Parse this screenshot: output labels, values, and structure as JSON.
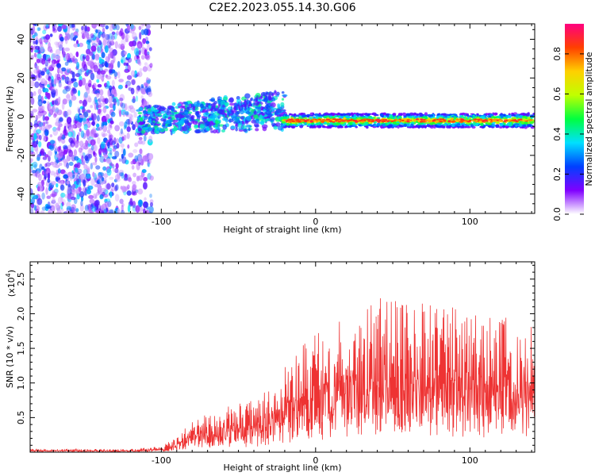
{
  "title": "C2E2.2023.055.14.30.G06",
  "chart_data": [
    {
      "type": "heatmap",
      "name": "spectrogram",
      "xlabel": "Height of straight line (km)",
      "ylabel": "Frequency (Hz)",
      "xlim": [
        -185,
        142
      ],
      "ylim": [
        -50,
        48
      ],
      "xticks": [
        -100,
        0,
        100
      ],
      "xtick_labels": [
        "-100",
        "0",
        "100"
      ],
      "yticks": [
        -40,
        -20,
        0,
        20,
        40
      ],
      "ytick_labels": [
        "-40",
        "-20",
        "0",
        "20",
        "40"
      ],
      "colorbar": {
        "label": "Normalized spectral amplitude",
        "range": [
          0,
          0.95
        ],
        "ticks": [
          0.0,
          0.2,
          0.4,
          0.6,
          0.8
        ],
        "tick_labels": [
          "0.0",
          "0.2",
          "0.4",
          "0.6",
          "0.8"
        ],
        "colors": [
          "#ffffff",
          "#8000ff",
          "#0040ff",
          "#00e0ff",
          "#00ff40",
          "#c0ff00",
          "#ffd000",
          "#ff4000",
          "#ff0080"
        ]
      },
      "regions": [
        {
          "x_range": [
            -185,
            -106
          ],
          "freq_range": [
            -50,
            48
          ],
          "amplitude": 0.08,
          "description": "broadband noise"
        },
        {
          "x_range": [
            -115,
            -20
          ],
          "freq_center": [
            -2,
            8
          ],
          "amplitude": 0.4
        },
        {
          "x_range": [
            -20,
            142
          ],
          "freq_center": [
            -2,
            -2
          ],
          "amplitude": 0.85
        }
      ]
    },
    {
      "type": "line",
      "name": "snr",
      "xlabel": "Height of straight line (km)",
      "ylabel": "SNR (10 * v/v)",
      "scale_label": "(x10",
      "scale_exp": "4",
      "scale_close": ")",
      "xlim": [
        -185,
        142
      ],
      "ylim": [
        0,
        2.75
      ],
      "xticks": [
        -100,
        0,
        100
      ],
      "xtick_labels": [
        "-100",
        "0",
        "100"
      ],
      "yticks": [
        0.5,
        1.0,
        1.5,
        2.0,
        2.5
      ],
      "ytick_labels": [
        "0.5",
        "1.0",
        "1.5",
        "2.0",
        "2.5"
      ],
      "color": "#ee3333",
      "envelope": {
        "x": [
          -185,
          -120,
          -100,
          -90,
          -80,
          -60,
          -40,
          -20,
          0,
          20,
          40,
          60,
          80,
          100,
          120,
          142
        ],
        "y": [
          0.03,
          0.03,
          0.06,
          0.15,
          0.3,
          0.45,
          0.5,
          0.85,
          1.15,
          1.35,
          1.5,
          1.5,
          1.45,
          1.4,
          1.3,
          1.3
        ]
      }
    }
  ]
}
